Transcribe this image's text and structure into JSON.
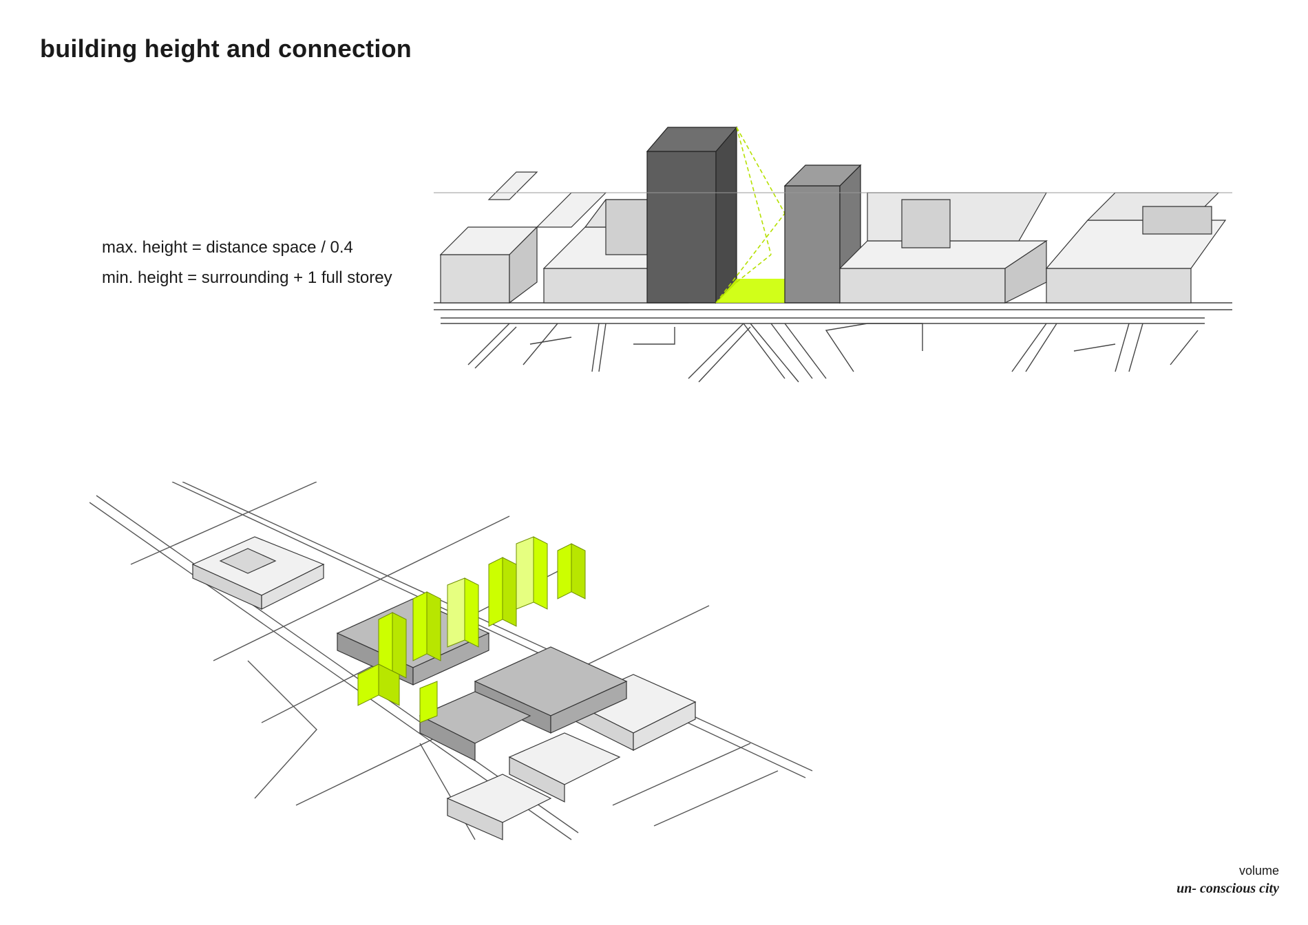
{
  "title": "building height and connection",
  "rules": [
    "max. height = distance space / 0.4",
    "min. height = surrounding + 1 full storey"
  ],
  "footer": {
    "subject": "volume",
    "project": "un- conscious city"
  },
  "colors": {
    "highlight_green": "#ccff00",
    "tower_dark": "#5e5e5e",
    "tower_medium": "#8c8c8c",
    "block_light": "#d9d9d9",
    "block_top": "#f2f2f2",
    "street_lines": "#333333"
  }
}
